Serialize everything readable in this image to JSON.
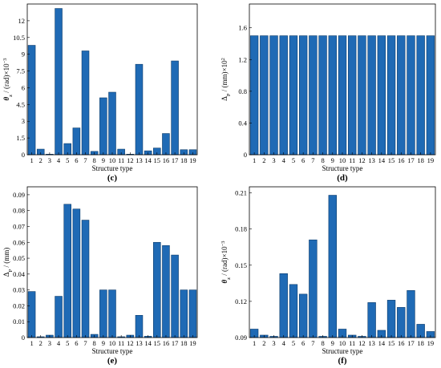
{
  "bar_color": "#1f6ab5",
  "chart_data": [
    {
      "type": "bar",
      "panel_label": "(c)",
      "xlabel": "Structure type",
      "ylabel_parts": [
        "θ",
        "z",
        " / (rad)×10",
        "−3"
      ],
      "categories": [
        "1",
        "2",
        "3",
        "4",
        "5",
        "6",
        "7",
        "8",
        "9",
        "10",
        "11",
        "12",
        "13",
        "14",
        "15",
        "16",
        "17",
        "18",
        "19"
      ],
      "values": [
        9.8,
        0.5,
        0.05,
        13.1,
        1.0,
        2.4,
        9.3,
        0.3,
        5.1,
        5.6,
        0.5,
        0.05,
        8.1,
        0.35,
        0.6,
        1.9,
        8.4,
        0.45,
        0.45
      ],
      "ylim": [
        0,
        13.5
      ],
      "yticks": [
        "0",
        "1.5",
        "3",
        "4.5",
        "6",
        "7.5",
        "9",
        "10.5",
        "12"
      ],
      "ytick_values": [
        0,
        1.5,
        3,
        4.5,
        6,
        7.5,
        9,
        10.5,
        12
      ]
    },
    {
      "type": "bar",
      "panel_label": "(d)",
      "xlabel": "Structure type",
      "ylabel_parts": [
        "Δ",
        "P",
        " / (mm)×10",
        "2"
      ],
      "categories": [
        "1",
        "2",
        "3",
        "4",
        "5",
        "6",
        "7",
        "8",
        "9",
        "10",
        "11",
        "12",
        "13",
        "14",
        "15",
        "16",
        "17",
        "18",
        "19"
      ],
      "values": [
        1.5,
        1.5,
        1.5,
        1.5,
        1.5,
        1.5,
        1.5,
        1.5,
        1.5,
        1.5,
        1.5,
        1.5,
        1.5,
        1.5,
        1.5,
        1.5,
        1.5,
        1.5,
        1.5
      ],
      "ylim": [
        0,
        1.9
      ],
      "yticks": [
        "0",
        "0.4",
        "0.8",
        "1.2",
        "1.6"
      ],
      "ytick_values": [
        0,
        0.4,
        0.8,
        1.2,
        1.6
      ]
    },
    {
      "type": "bar",
      "panel_label": "(e)",
      "xlabel": "Structure type",
      "ylabel_parts": [
        "Δ",
        "P",
        " / (mm)",
        ""
      ],
      "categories": [
        "1",
        "2",
        "3",
        "4",
        "5",
        "6",
        "7",
        "8",
        "9",
        "10",
        "11",
        "12",
        "13",
        "14",
        "15",
        "16",
        "17",
        "18",
        "19"
      ],
      "values": [
        0.029,
        0.0005,
        0.0015,
        0.026,
        0.084,
        0.081,
        0.074,
        0.002,
        0.03,
        0.03,
        0.0005,
        0.0015,
        0.014,
        0.0008,
        0.06,
        0.058,
        0.052,
        0.03,
        0.03
      ],
      "ylim": [
        0,
        0.095
      ],
      "yticks": [
        "0",
        "0.01",
        "0.02",
        "0.03",
        "0.04",
        "0.05",
        "0.06",
        "0.07",
        "0.08",
        "0.09"
      ],
      "ytick_values": [
        0,
        0.01,
        0.02,
        0.03,
        0.04,
        0.05,
        0.06,
        0.07,
        0.08,
        0.09
      ]
    },
    {
      "type": "bar",
      "panel_label": "(f)",
      "xlabel": "Structure type",
      "ylabel_parts": [
        "θ",
        "z",
        " / (rad)×10",
        "−3"
      ],
      "categories": [
        "1",
        "2",
        "3",
        "4",
        "5",
        "6",
        "7",
        "8",
        "9",
        "10",
        "11",
        "12",
        "13",
        "14",
        "15",
        "16",
        "17",
        "18",
        "19"
      ],
      "values": [
        0.097,
        0.092,
        0.091,
        0.143,
        0.134,
        0.126,
        0.171,
        0.091,
        0.208,
        0.097,
        0.092,
        0.091,
        0.119,
        0.096,
        0.121,
        0.115,
        0.129,
        0.101,
        0.095
      ],
      "ylim": [
        0.09,
        0.215
      ],
      "yticks": [
        "0.09",
        "0.12",
        "0.15",
        "0.18",
        "0.21"
      ],
      "ytick_values": [
        0.09,
        0.12,
        0.15,
        0.18,
        0.21
      ]
    }
  ]
}
